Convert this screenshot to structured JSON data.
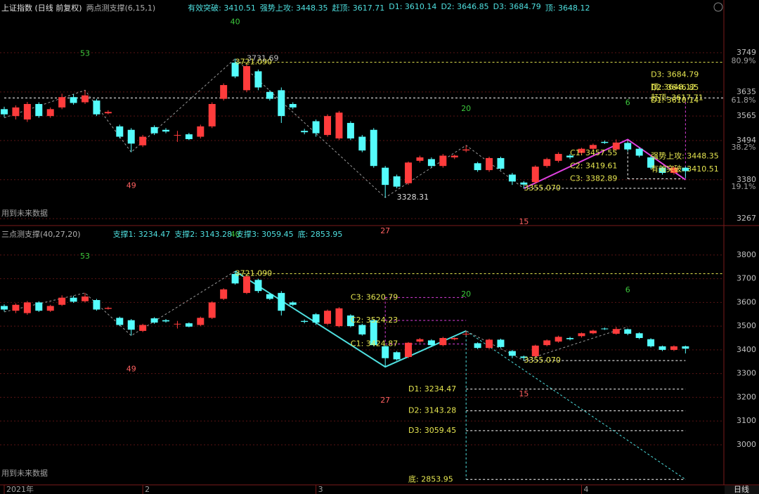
{
  "chart_data": [
    {
      "type": "candlestick",
      "title": "上证指数 (日线 前复权)",
      "indicator": "两点测支撑(6,15,1)",
      "legend": [
        "有效突破: 3410.51",
        "强势上攻: 3448.35",
        "赶顶: 3617.71",
        "D1: 3610.14",
        "D2: 3646.85",
        "D3: 3684.79",
        "顶: 3648.12"
      ],
      "note": "用到未来数据",
      "up_color": "#ff3c3c",
      "down_color": "#54fcfc",
      "open": [
        3585,
        3565,
        3555,
        3600,
        3565,
        3590,
        3620,
        3605,
        3610,
        3573,
        3535,
        3525,
        3480,
        3533,
        3525,
        3508,
        3512,
        3505,
        3535,
        3615,
        3720,
        3640,
        3695,
        3635,
        3640,
        3600,
        3522,
        3550,
        3510,
        3500,
        3545,
        3505,
        3525,
        3415,
        3390,
        3370,
        3435,
        3440,
        3420,
        3445,
        3465,
        3428,
        3408,
        3443,
        3395,
        3372,
        3373,
        3420,
        3435,
        3450,
        3458,
        3470,
        3490,
        3468,
        3487,
        3470,
        3445,
        3415,
        3400,
        3415
      ],
      "high": [
        3592,
        3596,
        3606,
        3605,
        3590,
        3630,
        3628,
        3640,
        3615,
        3582,
        3540,
        3530,
        3510,
        3538,
        3530,
        3522,
        3516,
        3540,
        3605,
        3660,
        3731.69,
        3715,
        3700,
        3640,
        3648,
        3605,
        3528,
        3555,
        3570,
        3580,
        3550,
        3510,
        3530,
        3420,
        3395,
        3433,
        3450,
        3445,
        3455,
        3453,
        3480,
        3432,
        3447,
        3447,
        3400,
        3376,
        3422,
        3444,
        3460,
        3455,
        3473,
        3485,
        3494,
        3497,
        3490,
        3474,
        3449,
        3418,
        3419,
        3418
      ],
      "low": [
        3562,
        3555,
        3548,
        3560,
        3560,
        3585,
        3598,
        3600,
        3565,
        3570,
        3500,
        3460,
        3475,
        3510,
        3515,
        3490,
        3495,
        3500,
        3530,
        3610,
        3675,
        3635,
        3640,
        3610,
        3545,
        3585,
        3512,
        3505,
        3505,
        3495,
        3495,
        3460,
        3415,
        3328.31,
        3355,
        3365,
        3430,
        3415,
        3415,
        3440,
        3460,
        3403,
        3403,
        3408,
        3365,
        3355.07,
        3368,
        3415,
        3430,
        3440,
        3452,
        3466,
        3484,
        3464,
        3462,
        3445,
        3410,
        3395,
        3395,
        3385
      ],
      "close": [
        3570,
        3590,
        3600,
        3565,
        3585,
        3620,
        3603,
        3625,
        3570,
        3577,
        3505,
        3485,
        3505,
        3515,
        3520,
        3510,
        3498,
        3535,
        3600,
        3655,
        3680,
        3710,
        3648,
        3615,
        3565,
        3590,
        3518,
        3515,
        3565,
        3575,
        3500,
        3465,
        3420,
        3365,
        3360,
        3430,
        3445,
        3420,
        3450,
        3450,
        3468,
        3408,
        3443,
        3412,
        3375,
        3366,
        3418,
        3440,
        3455,
        3445,
        3470,
        3481,
        3487,
        3488,
        3468,
        3450,
        3415,
        3400,
        3415,
        3405
      ],
      "ylim": [
        3249,
        3902
      ],
      "yticks": [
        3749,
        3635,
        3565,
        3494,
        3380,
        3267
      ],
      "grid": true,
      "fib_levels": [
        {
          "value": 3724.5,
          "label": "80.9%"
        },
        {
          "value": 3610,
          "label": "61.8%"
        },
        {
          "value": 3473,
          "label": "38.2%"
        },
        {
          "value": 3359,
          "label": "19.1%"
        }
      ],
      "hlines": [
        {
          "value": 3721.09,
          "from": 20,
          "color": "#e6e650"
        },
        {
          "value": 3617.71,
          "from": 0,
          "color": "#ffffff"
        },
        {
          "value": 3355.07,
          "from": 45,
          "to": 59,
          "color": "#ffffff"
        },
        {
          "value": 3382.89,
          "from": 54,
          "to": 59,
          "color": "#ffffff"
        }
      ],
      "vlines": [
        {
          "index": 59,
          "from": 3617.71,
          "to": 3382.89,
          "color": "#e040e0"
        },
        {
          "index": 54,
          "from": 3497,
          "to": 3382.89,
          "color": "#ffffff"
        }
      ],
      "lines": [
        {
          "index": [
            0,
            7,
            11,
            20,
            33,
            40,
            45,
            54
          ],
          "values": [
            3560,
            3640,
            3460,
            3731.69,
            3328.31,
            3480,
            3355.07,
            3497
          ],
          "labels": [
            null,
            "53",
            "49",
            "40",
            "27",
            "20",
            "15",
            "6"
          ],
          "color": "#9a9a9a",
          "dashed": true,
          "width": 1
        },
        {
          "index": [
            45,
            54,
            59
          ],
          "values": [
            3355.07,
            3497,
            3380
          ],
          "color": "#e040e0",
          "dashed": false,
          "width": 2
        }
      ],
      "price_labels": [
        {
          "index": 20,
          "value": 3721.09,
          "label": "3721.090",
          "color": "#e6e650"
        },
        {
          "index": 21,
          "value": 3731.69,
          "label": "3731.69",
          "color": "#bbbbbb"
        },
        {
          "index": 34,
          "value": 3328.31,
          "label": "3328.31",
          "color": "#dddddd"
        },
        {
          "index": 45,
          "value": 3355.07,
          "label": "3355.070",
          "color": "#e6e650"
        },
        {
          "index": 49,
          "value": 3457.55,
          "label": "C1: 3457.55",
          "color": "#e6e650"
        },
        {
          "index": 49,
          "value": 3419.61,
          "label": "C2: 3419.61",
          "color": "#e6e650"
        },
        {
          "index": 49,
          "value": 3382.89,
          "label": "C3: 3382.89",
          "color": "#e6e650"
        },
        {
          "index": 56,
          "value": 3684.79,
          "label": "D3: 3684.79",
          "color": "#e6e650"
        },
        {
          "index": 56,
          "value": 3648.12,
          "label": "顶: 3648.12",
          "color": "#e6e650"
        },
        {
          "index": 56,
          "value": 3646.85,
          "label": "D2: 3646.85",
          "color": "#e6e650"
        },
        {
          "index": 56,
          "value": 3617.71,
          "label": "赶顶: 3617.71",
          "color": "#e6e650"
        },
        {
          "index": 56,
          "value": 3610.14,
          "label": "D1: 3610.14",
          "color": "#e6e650"
        },
        {
          "index": 56,
          "value": 3448.35,
          "label": "强势上攻: 3448.35",
          "color": "#e6e650"
        },
        {
          "index": 56,
          "value": 3410.51,
          "label": "有效突破: 3410.51",
          "color": "#e6e650"
        }
      ]
    },
    {
      "type": "candlestick",
      "indicator": "三点测支撑(40,27,20)",
      "legend": [
        "支撑1: 3234.47",
        "支撑2: 3143.28",
        "支撑3: 3059.45",
        "底: 2853.95"
      ],
      "note": "用到未来数据",
      "period": "日线",
      "up_color": "#ff3c3c",
      "down_color": "#54fcfc",
      "categories": [
        "2021年",
        null,
        null,
        null,
        null,
        null,
        null,
        null,
        null,
        null,
        null,
        null,
        "2",
        null,
        null,
        null,
        null,
        null,
        null,
        null,
        null,
        null,
        null,
        null,
        null,
        null,
        null,
        "3",
        null,
        null,
        null,
        null,
        null,
        null,
        null,
        null,
        null,
        null,
        null,
        null,
        null,
        null,
        null,
        null,
        null,
        null,
        null,
        null,
        null,
        null,
        "4",
        null,
        null,
        null,
        null,
        null,
        null,
        null,
        null,
        null
      ],
      "open": [
        3585,
        3565,
        3555,
        3600,
        3565,
        3590,
        3620,
        3605,
        3610,
        3573,
        3535,
        3525,
        3480,
        3533,
        3525,
        3508,
        3512,
        3505,
        3535,
        3615,
        3720,
        3640,
        3695,
        3635,
        3640,
        3600,
        3522,
        3550,
        3510,
        3500,
        3545,
        3505,
        3525,
        3415,
        3390,
        3370,
        3435,
        3440,
        3420,
        3445,
        3465,
        3428,
        3408,
        3443,
        3395,
        3372,
        3373,
        3420,
        3435,
        3450,
        3458,
        3470,
        3490,
        3468,
        3487,
        3470,
        3445,
        3415,
        3400,
        3415
      ],
      "high": [
        3592,
        3596,
        3606,
        3605,
        3590,
        3630,
        3628,
        3640,
        3615,
        3582,
        3540,
        3530,
        3510,
        3538,
        3530,
        3522,
        3516,
        3540,
        3605,
        3660,
        3731.69,
        3715,
        3700,
        3640,
        3648,
        3605,
        3528,
        3555,
        3570,
        3580,
        3550,
        3510,
        3530,
        3420,
        3395,
        3433,
        3450,
        3445,
        3455,
        3453,
        3480,
        3432,
        3447,
        3447,
        3400,
        3376,
        3422,
        3444,
        3460,
        3455,
        3473,
        3485,
        3494,
        3497,
        3490,
        3474,
        3449,
        3418,
        3419,
        3418
      ],
      "low": [
        3562,
        3555,
        3548,
        3560,
        3560,
        3585,
        3598,
        3600,
        3565,
        3570,
        3500,
        3460,
        3475,
        3510,
        3515,
        3490,
        3495,
        3500,
        3530,
        3610,
        3675,
        3635,
        3640,
        3610,
        3545,
        3585,
        3512,
        3505,
        3505,
        3495,
        3495,
        3460,
        3415,
        3328.31,
        3355,
        3365,
        3430,
        3415,
        3415,
        3440,
        3460,
        3403,
        3403,
        3408,
        3365,
        3355.07,
        3368,
        3415,
        3430,
        3440,
        3452,
        3466,
        3484,
        3464,
        3462,
        3445,
        3410,
        3395,
        3395,
        3385
      ],
      "close": [
        3570,
        3590,
        3600,
        3565,
        3585,
        3620,
        3603,
        3625,
        3570,
        3577,
        3505,
        3485,
        3505,
        3515,
        3520,
        3510,
        3498,
        3535,
        3600,
        3655,
        3680,
        3710,
        3648,
        3615,
        3565,
        3590,
        3518,
        3515,
        3565,
        3575,
        3500,
        3465,
        3420,
        3365,
        3360,
        3430,
        3445,
        3420,
        3450,
        3450,
        3468,
        3408,
        3443,
        3412,
        3375,
        3366,
        3418,
        3440,
        3455,
        3445,
        3470,
        3481,
        3487,
        3488,
        3468,
        3450,
        3415,
        3400,
        3415,
        3405
      ],
      "ylim": [
        2831,
        3921
      ],
      "yticks": [
        3800,
        3700,
        3600,
        3500,
        3400,
        3300,
        3200,
        3100,
        3000
      ],
      "grid": true,
      "hlines": [
        {
          "value": 3721.09,
          "from": 20,
          "color": "#e6e650"
        },
        {
          "value": 3355.07,
          "from": 45,
          "to": 59,
          "color": "#ffffff"
        },
        {
          "value": 3620.79,
          "from": 33,
          "to": 40,
          "color": "#e040e0"
        },
        {
          "value": 3524.23,
          "from": 33,
          "to": 40,
          "color": "#e040e0"
        },
        {
          "value": 3424.87,
          "from": 33,
          "to": 40,
          "color": "#e040e0"
        },
        {
          "value": 3234.47,
          "from": 40,
          "to": 59,
          "color": "#ffffff"
        },
        {
          "value": 3143.28,
          "from": 40,
          "to": 59,
          "color": "#ffffff"
        },
        {
          "value": 3059.45,
          "from": 40,
          "to": 59,
          "color": "#ffffff"
        },
        {
          "value": 2853.95,
          "from": 40,
          "to": 59,
          "color": "#ffffff"
        }
      ],
      "vlines": [
        {
          "index": 40,
          "from": 3480,
          "to": 2853.95,
          "color": "#4fe0e0"
        },
        {
          "index": 33,
          "from": 3620.79,
          "to": 3424.87,
          "color": "#e040e0"
        }
      ],
      "lines": [
        {
          "index": [
            0,
            7,
            11,
            20,
            33,
            40,
            45,
            54
          ],
          "values": [
            3560,
            3640,
            3460,
            3731.69,
            3328.31,
            3480,
            3355.07,
            3497
          ],
          "labels": [
            null,
            "53",
            "49",
            "40",
            "27",
            "20",
            "15",
            "6"
          ],
          "color": "#9a9a9a",
          "dashed": true,
          "width": 1
        },
        {
          "index": [
            20,
            33,
            40
          ],
          "values": [
            3731.69,
            3328.31,
            3480
          ],
          "color": "#4fe0e0",
          "dashed": false,
          "width": 2
        },
        {
          "index": [
            40,
            59
          ],
          "values": [
            3480,
            2853.95
          ],
          "color": "#4fe0e0",
          "dashed": true,
          "width": 1
        }
      ],
      "price_labels": [
        {
          "index": 20,
          "value": 3721.09,
          "label": "3721.090",
          "color": "#e6e650"
        },
        {
          "index": 45,
          "value": 3355.07,
          "label": "3355.070",
          "color": "#e6e650"
        },
        {
          "index": 30,
          "value": 3620.79,
          "label": "C3: 3620.79",
          "color": "#e6e650"
        },
        {
          "index": 30,
          "value": 3524.23,
          "label": "C2: 3524.23",
          "color": "#e6e650"
        },
        {
          "index": 30,
          "value": 3424.87,
          "label": "C1: 3424.87",
          "color": "#e6e650"
        },
        {
          "index": 35,
          "value": 3234.47,
          "label": "D1: 3234.47",
          "color": "#e6e650"
        },
        {
          "index": 35,
          "value": 3143.28,
          "label": "D2: 3143.28",
          "color": "#e6e650"
        },
        {
          "index": 35,
          "value": 3059.45,
          "label": "D3: 3059.45",
          "color": "#e6e650"
        },
        {
          "index": 35,
          "value": 2853.95,
          "label": "底: 2853.95",
          "color": "#e6e650"
        }
      ]
    }
  ]
}
